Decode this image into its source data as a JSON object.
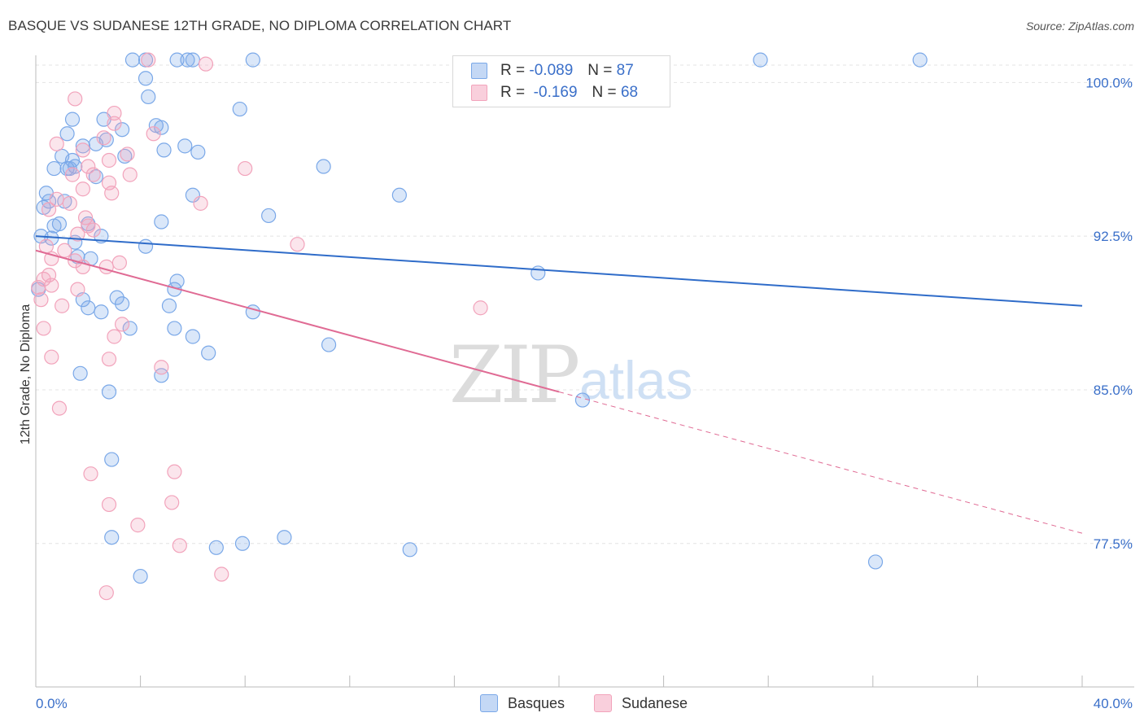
{
  "title": "BASQUE VS SUDANESE 12TH GRADE, NO DIPLOMA CORRELATION CHART",
  "source": "Source: ZipAtlas.com",
  "watermark": {
    "zip": "ZIP",
    "atlas": "atlas"
  },
  "legend": {
    "rows": [
      {
        "r_label": "R =",
        "r_value": "-0.089",
        "n_label": "N =",
        "n_value": "87",
        "color": "#7aa8e8"
      },
      {
        "r_label": "R =",
        "r_value": "-0.169",
        "n_label": "N =",
        "n_value": "68",
        "color": "#f2a3bb"
      }
    ]
  },
  "bottom_legend": [
    {
      "label": "Basques",
      "color": "#7aa8e8"
    },
    {
      "label": "Sudanese",
      "color": "#f2a3bb"
    }
  ],
  "chart_data": {
    "type": "scatter",
    "title": "BASQUE VS SUDANESE 12TH GRADE, NO DIPLOMA CORRELATION CHART",
    "xlabel": "",
    "ylabel": "12th Grade, No Diploma",
    "xlim": [
      0,
      40
    ],
    "ylim": [
      70.5,
      101.8
    ],
    "x_tick_labels": [
      {
        "value": 0,
        "label": "0.0%"
      },
      {
        "value": 40,
        "label": "40.0%"
      }
    ],
    "y_tick_labels": [
      {
        "value": 100,
        "label": "100.0%"
      },
      {
        "value": 92.5,
        "label": "92.5%"
      },
      {
        "value": 85,
        "label": "85.0%"
      },
      {
        "value": 77.5,
        "label": "77.5%"
      }
    ],
    "grid": true,
    "series": [
      {
        "name": "Basques",
        "color": "#7aa8e8",
        "line_color": "#2f6cc9",
        "trend": {
          "x": [
            0,
            40
          ],
          "y": [
            92.5,
            89.1
          ],
          "solid_until": 40
        },
        "points": [
          [
            3.7,
            101.1
          ],
          [
            4.2,
            101.1
          ],
          [
            5.4,
            101.1
          ],
          [
            5.8,
            101.1
          ],
          [
            6.0,
            101.1
          ],
          [
            8.3,
            101.1
          ],
          [
            27.7,
            101.1
          ],
          [
            33.8,
            101.1
          ],
          [
            4.2,
            100.2
          ],
          [
            4.3,
            99.3
          ],
          [
            7.8,
            98.7
          ],
          [
            1.4,
            98.2
          ],
          [
            2.6,
            98.2
          ],
          [
            4.6,
            97.9
          ],
          [
            4.8,
            97.8
          ],
          [
            3.3,
            97.7
          ],
          [
            1.2,
            97.5
          ],
          [
            2.7,
            97.2
          ],
          [
            2.3,
            97.0
          ],
          [
            1.8,
            96.9
          ],
          [
            5.7,
            96.9
          ],
          [
            4.9,
            96.7
          ],
          [
            6.2,
            96.6
          ],
          [
            3.4,
            96.4
          ],
          [
            1.0,
            96.4
          ],
          [
            1.4,
            96.2
          ],
          [
            0.7,
            95.8
          ],
          [
            1.2,
            95.8
          ],
          [
            1.3,
            95.8
          ],
          [
            1.5,
            95.9
          ],
          [
            11.0,
            95.9
          ],
          [
            2.3,
            95.4
          ],
          [
            6.0,
            94.5
          ],
          [
            0.4,
            94.6
          ],
          [
            0.5,
            94.2
          ],
          [
            1.1,
            94.2
          ],
          [
            0.3,
            93.9
          ],
          [
            13.9,
            94.5
          ],
          [
            4.8,
            93.2
          ],
          [
            2.0,
            93.1
          ],
          [
            0.9,
            93.1
          ],
          [
            0.7,
            93.0
          ],
          [
            8.9,
            93.5
          ],
          [
            0.2,
            92.5
          ],
          [
            0.6,
            92.4
          ],
          [
            2.5,
            92.5
          ],
          [
            1.5,
            92.2
          ],
          [
            4.2,
            92.0
          ],
          [
            1.6,
            91.5
          ],
          [
            2.1,
            91.4
          ],
          [
            19.2,
            90.7
          ],
          [
            5.4,
            90.3
          ],
          [
            5.3,
            89.9
          ],
          [
            0.1,
            89.9
          ],
          [
            1.8,
            89.4
          ],
          [
            3.1,
            89.5
          ],
          [
            3.3,
            89.2
          ],
          [
            5.1,
            89.1
          ],
          [
            2.0,
            89.0
          ],
          [
            8.3,
            88.8
          ],
          [
            2.5,
            88.8
          ],
          [
            3.6,
            88.0
          ],
          [
            5.3,
            88.0
          ],
          [
            6.0,
            87.6
          ],
          [
            11.2,
            87.2
          ],
          [
            6.6,
            86.8
          ],
          [
            1.7,
            85.8
          ],
          [
            4.8,
            85.7
          ],
          [
            2.8,
            84.9
          ],
          [
            20.9,
            84.5
          ],
          [
            2.9,
            81.6
          ],
          [
            2.9,
            77.8
          ],
          [
            9.5,
            77.8
          ],
          [
            6.9,
            77.3
          ],
          [
            7.9,
            77.5
          ],
          [
            14.3,
            77.2
          ],
          [
            32.1,
            76.6
          ],
          [
            4.0,
            75.9
          ]
        ]
      },
      {
        "name": "Sudanese",
        "color": "#f2a3bb",
        "line_color": "#e06b94",
        "trend": {
          "x": [
            0,
            40
          ],
          "y": [
            91.8,
            78.0
          ],
          "solid_until": 20
        },
        "points": [
          [
            4.3,
            101.1
          ],
          [
            6.5,
            100.9
          ],
          [
            1.5,
            99.2
          ],
          [
            3.0,
            98.5
          ],
          [
            4.5,
            97.5
          ],
          [
            2.6,
            97.3
          ],
          [
            0.8,
            97.0
          ],
          [
            1.8,
            96.7
          ],
          [
            3.5,
            96.5
          ],
          [
            2.8,
            96.2
          ],
          [
            2.0,
            95.9
          ],
          [
            2.2,
            95.5
          ],
          [
            1.4,
            95.5
          ],
          [
            8.0,
            95.8
          ],
          [
            3.6,
            95.5
          ],
          [
            2.8,
            95.1
          ],
          [
            2.9,
            94.6
          ],
          [
            1.8,
            94.8
          ],
          [
            0.8,
            94.3
          ],
          [
            1.3,
            94.1
          ],
          [
            6.3,
            94.1
          ],
          [
            0.5,
            93.8
          ],
          [
            1.9,
            93.4
          ],
          [
            2.0,
            93.0
          ],
          [
            2.2,
            92.8
          ],
          [
            1.6,
            92.6
          ],
          [
            0.4,
            92.0
          ],
          [
            1.1,
            91.8
          ],
          [
            0.6,
            91.4
          ],
          [
            1.5,
            91.3
          ],
          [
            3.2,
            91.2
          ],
          [
            10.0,
            92.1
          ],
          [
            1.8,
            91.0
          ],
          [
            0.5,
            90.6
          ],
          [
            2.7,
            91.0
          ],
          [
            0.3,
            90.4
          ],
          [
            0.6,
            90.1
          ],
          [
            1.6,
            89.9
          ],
          [
            0.1,
            90.0
          ],
          [
            0.2,
            89.4
          ],
          [
            1.0,
            89.1
          ],
          [
            17.0,
            89.0
          ],
          [
            3.3,
            88.2
          ],
          [
            0.3,
            88.0
          ],
          [
            3.0,
            87.6
          ],
          [
            0.6,
            86.6
          ],
          [
            2.8,
            86.5
          ],
          [
            4.8,
            86.1
          ],
          [
            0.9,
            84.1
          ],
          [
            2.1,
            80.9
          ],
          [
            5.3,
            81.0
          ],
          [
            2.8,
            79.4
          ],
          [
            5.2,
            79.5
          ],
          [
            3.9,
            78.4
          ],
          [
            5.5,
            77.4
          ],
          [
            7.1,
            76.0
          ],
          [
            2.7,
            75.1
          ],
          [
            3.0,
            98.0
          ]
        ]
      }
    ]
  }
}
